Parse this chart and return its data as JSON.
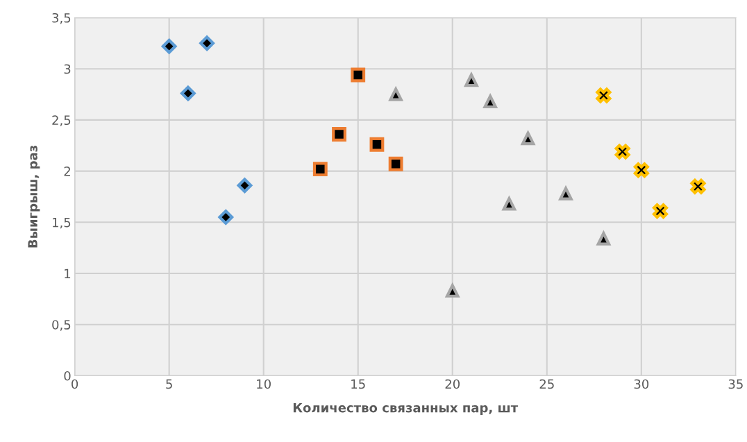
{
  "chart_data": {
    "type": "scatter",
    "xlabel": "Количество связанных пар, шт",
    "ylabel": "Выигрыш, раз",
    "xlim": [
      0,
      35
    ],
    "xticks": [
      0,
      5,
      10,
      15,
      20,
      25,
      30,
      35
    ],
    "ylim": [
      0,
      3.5
    ],
    "yticks": [
      0,
      {
        "value": 0.5,
        "label": "0,5"
      },
      1,
      {
        "value": 1.5,
        "label": "1,5"
      },
      2,
      {
        "value": 2.5,
        "label": "2,5"
      },
      3,
      {
        "value": 3.5,
        "label": "3,5"
      }
    ],
    "grid": true,
    "series": [
      {
        "color": "#5b9bd5",
        "marker": "diamond",
        "x": [
          5,
          6,
          7,
          8,
          9
        ],
        "values": [
          3.22,
          2.76,
          3.25,
          1.55,
          1.86
        ]
      },
      {
        "color": "#ed7d31",
        "marker": "square",
        "x": [
          13,
          14,
          15,
          16,
          17
        ],
        "values": [
          2.02,
          2.36,
          2.94,
          2.26,
          2.07
        ]
      },
      {
        "color": "#a5a5a5",
        "marker": "triangle",
        "x": [
          17,
          20,
          21,
          22,
          23,
          24,
          26,
          28
        ],
        "values": [
          2.75,
          0.83,
          2.89,
          2.68,
          1.68,
          2.32,
          1.78,
          1.34
        ]
      },
      {
        "color": "#ffc000",
        "marker": "cross",
        "x": [
          28,
          29,
          30,
          31,
          33
        ],
        "values": [
          2.74,
          2.19,
          2.01,
          1.61,
          1.85
        ]
      }
    ]
  }
}
